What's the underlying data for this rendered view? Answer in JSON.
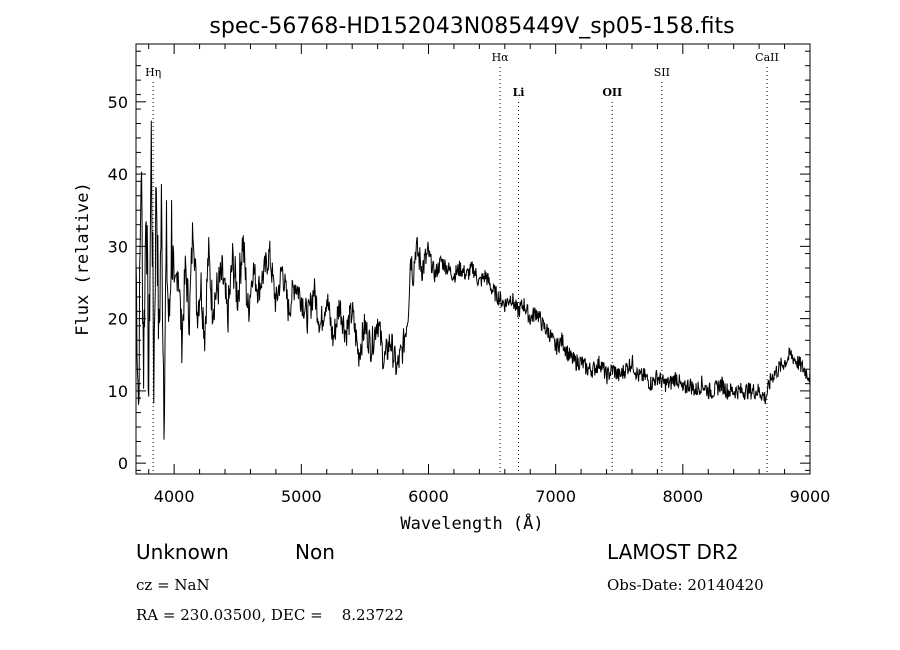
{
  "chart_data": {
    "type": "line",
    "title": "spec-56768-HD152043N085449V_sp05-158.fits",
    "xlabel": "Wavelength (Å)",
    "ylabel": "Flux (relative)",
    "xlim": [
      3700,
      9000
    ],
    "ylim": [
      -1.5,
      58
    ],
    "xticks": [
      4000,
      5000,
      6000,
      7000,
      8000,
      9000
    ],
    "yticks": [
      0,
      10,
      20,
      30,
      40,
      50
    ],
    "grid": false,
    "series": [
      {
        "x": [
          3700,
          3720,
          3740,
          3760,
          3780,
          3800,
          3820,
          3840,
          3860,
          3880,
          3900,
          3920,
          3940,
          3960,
          3980,
          4000,
          4030,
          4060,
          4090,
          4120,
          4150,
          4180,
          4210,
          4240,
          4270,
          4300,
          4340,
          4380,
          4420,
          4460,
          4500,
          4540,
          4580,
          4620,
          4660,
          4700,
          4750,
          4800,
          4850,
          4900,
          4950,
          5000,
          5050,
          5100,
          5150,
          5200,
          5250,
          5300,
          5350,
          5400,
          5450,
          5500,
          5550,
          5600,
          5650,
          5700,
          5750,
          5800,
          5840,
          5860,
          5880,
          5900,
          5950,
          6000,
          6050,
          6100,
          6150,
          6200,
          6250,
          6300,
          6350,
          6400,
          6450,
          6500,
          6550,
          6600,
          6650,
          6700,
          6750,
          6800,
          6850,
          6900,
          6950,
          7000,
          7050,
          7100,
          7150,
          7200,
          7250,
          7300,
          7350,
          7400,
          7450,
          7500,
          7550,
          7600,
          7650,
          7700,
          7750,
          7800,
          7850,
          7900,
          7950,
          8000,
          8050,
          8100,
          8150,
          8200,
          8250,
          8300,
          8350,
          8400,
          8450,
          8500,
          8550,
          8600,
          8650,
          8700,
          8750,
          8800,
          8850,
          8900,
          8950,
          9000
        ],
        "y": [
          28,
          8,
          42,
          14,
          38,
          10,
          45,
          12,
          40,
          16,
          35,
          9,
          30,
          18,
          33,
          22,
          28,
          17,
          27,
          20,
          34,
          21,
          25,
          18,
          29,
          22,
          24,
          26,
          20,
          28,
          23,
          31,
          21,
          27,
          24,
          26,
          29,
          22,
          27,
          21,
          25,
          23,
          20,
          24,
          19,
          23,
          17,
          22,
          18,
          21,
          15,
          19,
          16,
          20,
          14,
          17,
          13,
          16,
          21,
          29,
          26,
          30,
          27,
          29,
          26,
          28,
          27,
          26,
          27,
          26,
          27,
          25,
          26,
          24,
          23,
          22,
          23,
          21,
          22,
          20,
          21,
          19,
          18,
          16,
          17,
          15,
          14,
          14,
          13,
          13,
          14,
          12,
          13,
          12,
          13,
          14,
          12,
          12,
          11,
          12,
          11,
          11,
          12,
          10,
          11,
          10,
          11,
          10,
          10,
          11,
          10,
          10,
          10,
          10,
          10,
          10,
          9,
          12,
          13,
          14,
          15,
          14,
          13,
          12
        ]
      }
    ],
    "lines": [
      {
        "label": "Hη",
        "x": 3835,
        "bold": false,
        "row": 0
      },
      {
        "label": "Hα",
        "x": 6563,
        "bold": false,
        "row": 1
      },
      {
        "label": "Li",
        "x": 6708,
        "bold": true,
        "row": 2
      },
      {
        "label": "OII",
        "x": 7445,
        "bold": true,
        "row": 2
      },
      {
        "label": "SII",
        "x": 7835,
        "bold": false,
        "row": 0
      },
      {
        "label": "CaII",
        "x": 8662,
        "bold": false,
        "row": 1
      }
    ]
  },
  "info": {
    "class": "Unknown",
    "subclass": "Non",
    "cz": "cz = NaN",
    "coords": "RA = 230.03500, DEC =    8.23722",
    "survey": "LAMOST DR2",
    "obs_date": "Obs-Date: 20140420"
  }
}
